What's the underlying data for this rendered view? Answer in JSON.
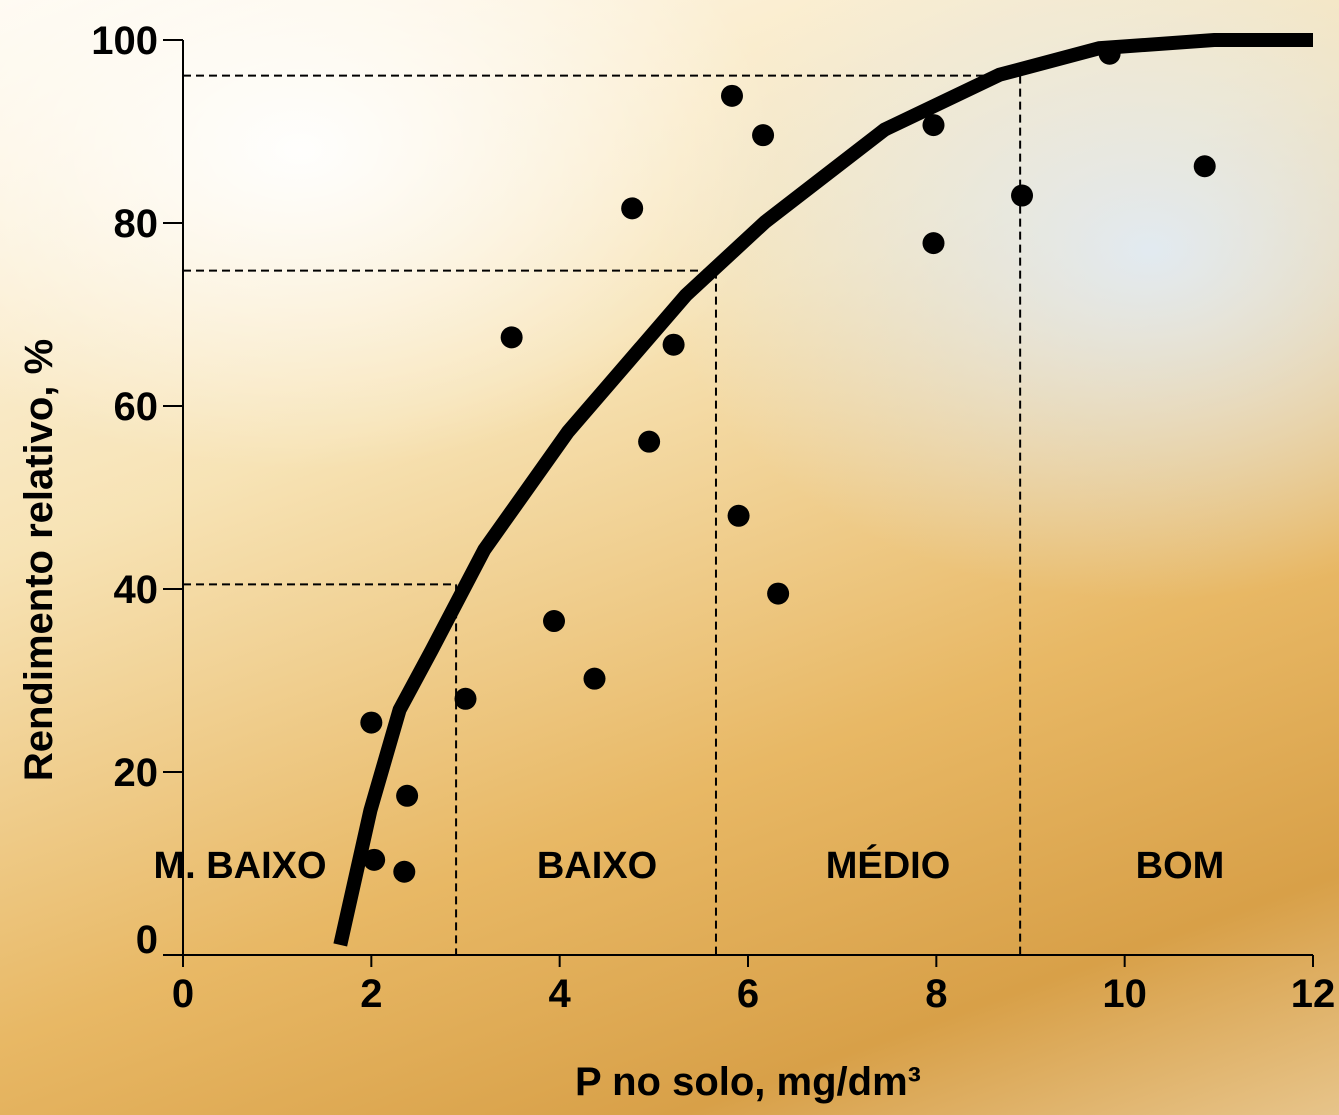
{
  "chart_data": {
    "type": "scatter",
    "x_label": "P no solo, mg/dm³",
    "y_label": "Rendimento relativo, %",
    "xlim": [
      0,
      12
    ],
    "xticks": [
      0,
      2,
      4,
      6,
      8,
      10,
      12
    ],
    "ylim": [
      0,
      100
    ],
    "yticks": [
      0,
      20,
      40,
      60,
      80,
      100
    ],
    "color": "#000000",
    "x": [
      2.0,
      2.03,
      2.38,
      2.35,
      3.0,
      3.49,
      3.94,
      4.37,
      4.77,
      4.95,
      5.21,
      5.83,
      5.9,
      6.16,
      6.32,
      7.97,
      7.97,
      8.91,
      9.84,
      10.85
    ],
    "values": [
      25.4,
      10.4,
      17.4,
      9.1,
      28,
      67.5,
      36.5,
      30.2,
      81.6,
      56.1,
      66.7,
      93.9,
      48,
      89.6,
      39.5,
      90.7,
      77.8,
      83,
      98.5,
      86.2
    ],
    "curve": {
      "x": [
        1.67,
        1.99,
        2.3,
        2.64,
        3.2,
        4.09,
        5.34,
        6.18,
        7.45,
        8.67,
        9.73,
        10.95,
        12
      ],
      "y": [
        1.1,
        15.8,
        26.8,
        33.3,
        44.3,
        57.2,
        72.1,
        80.1,
        90.2,
        96.2,
        99.1,
        100,
        100
      ]
    },
    "reference_lines": [
      {
        "x": 2.9,
        "y": 40.5
      },
      {
        "x": 5.66,
        "y": 74.8
      },
      {
        "x": 8.89,
        "y": 96.1
      }
    ],
    "zones": [
      "M. BAIXO",
      "BAIXO",
      "MÉDIO",
      "BOM"
    ]
  }
}
